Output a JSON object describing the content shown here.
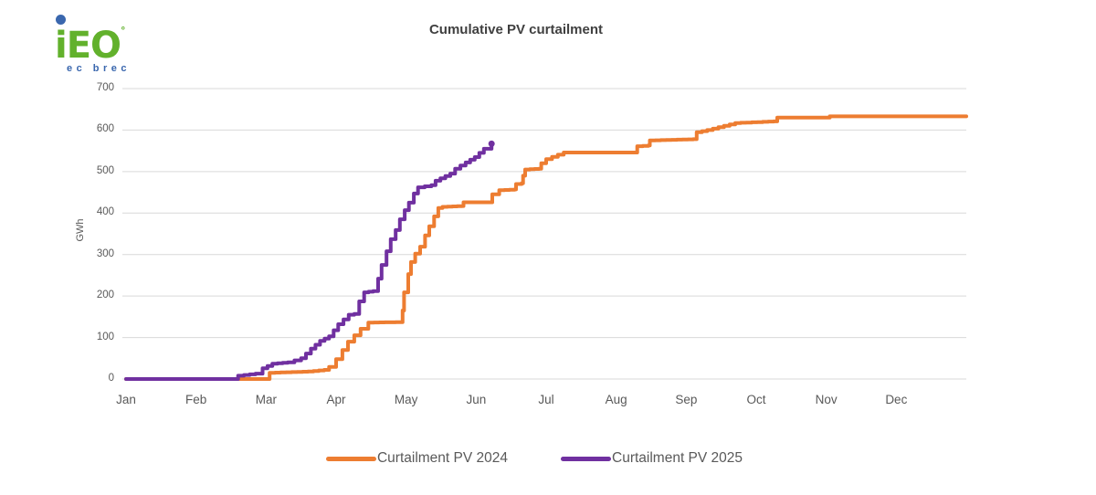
{
  "logo": {
    "text": "iEO",
    "mark": "°",
    "subtext": "ec brec",
    "green": "#62B12C",
    "blue": "#3A67AE"
  },
  "title": "Cumulative PV curtailment",
  "colors": {
    "gridline": "#D9D9D9",
    "axis_text": "#595959",
    "title_text": "#404040",
    "series_2024": "#ED7D31",
    "series_2025": "#7030A0"
  },
  "chart_data": {
    "type": "line",
    "subtype": "stepped-cumulative",
    "title": "Cumulative PV curtailment",
    "xlabel": "",
    "ylabel": "GWh",
    "ylim": [
      0,
      700
    ],
    "yticks": [
      0,
      100,
      200,
      300,
      400,
      500,
      600,
      700
    ],
    "categories": [
      "Jan",
      "Feb",
      "Mar",
      "Apr",
      "May",
      "Jun",
      "Jul",
      "Aug",
      "Sep",
      "Oct",
      "Nov",
      "Dec"
    ],
    "x_unit": "months since Jan 1 (0 = Jan 1, 12 = Dec 31)",
    "grid": "horizontal",
    "legend_position": "bottom-center",
    "series": [
      {
        "name": "Curtailment PV 2024",
        "color": "#ED7D31",
        "points": [
          [
            0,
            0
          ],
          [
            2.0,
            0
          ],
          [
            2.05,
            15
          ],
          [
            2.6,
            18
          ],
          [
            2.83,
            22
          ],
          [
            2.9,
            29
          ],
          [
            3.0,
            48
          ],
          [
            3.09,
            70
          ],
          [
            3.17,
            90
          ],
          [
            3.35,
            121
          ],
          [
            3.46,
            136
          ],
          [
            3.85,
            137
          ],
          [
            3.95,
            165
          ],
          [
            3.97,
            209
          ],
          [
            4.03,
            253
          ],
          [
            4.07,
            282
          ],
          [
            4.13,
            302
          ],
          [
            4.2,
            319
          ],
          [
            4.27,
            346
          ],
          [
            4.33,
            368
          ],
          [
            4.4,
            392
          ],
          [
            4.46,
            412
          ],
          [
            4.52,
            415
          ],
          [
            4.8,
            417
          ],
          [
            4.82,
            426
          ],
          [
            5.2,
            426
          ],
          [
            5.23,
            445
          ],
          [
            5.33,
            455
          ],
          [
            5.55,
            457
          ],
          [
            5.57,
            470
          ],
          [
            5.65,
            472
          ],
          [
            5.67,
            490
          ],
          [
            5.7,
            505
          ],
          [
            5.9,
            507
          ],
          [
            5.93,
            520
          ],
          [
            6.0,
            530
          ],
          [
            6.25,
            546
          ],
          [
            7.25,
            546
          ],
          [
            7.3,
            561
          ],
          [
            7.46,
            563
          ],
          [
            7.48,
            575
          ],
          [
            8.1,
            578
          ],
          [
            8.15,
            595
          ],
          [
            8.3,
            600
          ],
          [
            8.7,
            617
          ],
          [
            9.25,
            621
          ],
          [
            9.3,
            630
          ],
          [
            10.03,
            630
          ],
          [
            10.05,
            633
          ],
          [
            12,
            633
          ]
        ]
      },
      {
        "name": "Curtailment PV 2025",
        "color": "#7030A0",
        "end_marker": true,
        "points": [
          [
            0,
            0
          ],
          [
            1.55,
            0
          ],
          [
            1.6,
            8
          ],
          [
            1.85,
            13
          ],
          [
            1.95,
            26
          ],
          [
            2.09,
            37
          ],
          [
            2.31,
            40
          ],
          [
            2.5,
            50
          ],
          [
            2.64,
            73
          ],
          [
            2.77,
            92
          ],
          [
            2.9,
            103
          ],
          [
            3.03,
            132
          ],
          [
            3.18,
            155
          ],
          [
            3.26,
            157
          ],
          [
            3.33,
            187
          ],
          [
            3.4,
            209
          ],
          [
            3.53,
            212
          ],
          [
            3.6,
            242
          ],
          [
            3.65,
            275
          ],
          [
            3.72,
            308
          ],
          [
            3.78,
            337
          ],
          [
            3.85,
            359
          ],
          [
            3.91,
            385
          ],
          [
            3.98,
            407
          ],
          [
            4.04,
            425
          ],
          [
            4.11,
            447
          ],
          [
            4.17,
            462
          ],
          [
            4.36,
            467
          ],
          [
            4.42,
            478
          ],
          [
            4.63,
            495
          ],
          [
            4.7,
            507
          ],
          [
            4.85,
            522
          ],
          [
            4.98,
            535
          ],
          [
            5.11,
            555
          ],
          [
            5.22,
            567
          ]
        ]
      }
    ]
  }
}
